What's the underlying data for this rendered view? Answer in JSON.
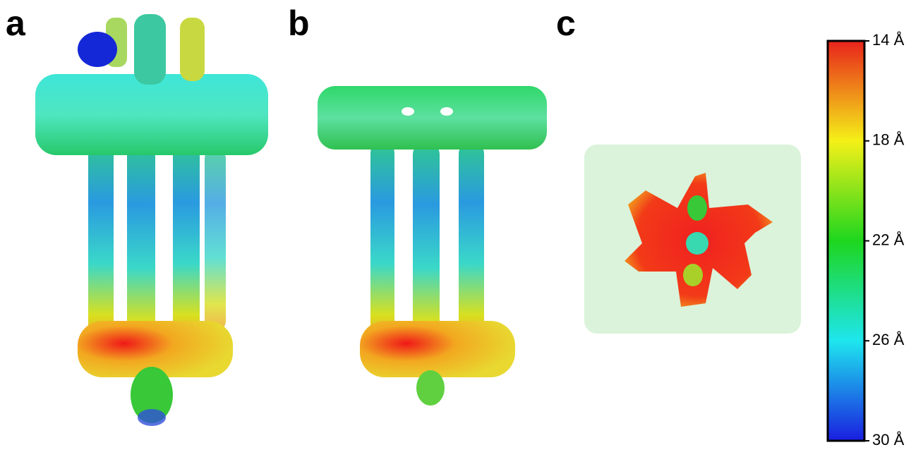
{
  "panels": [
    {
      "label": "a"
    },
    {
      "label": "b"
    },
    {
      "label": "c"
    }
  ],
  "colorbar": {
    "range": [
      14,
      30
    ],
    "ticks": [
      {
        "value": 14,
        "label": "14 Å"
      },
      {
        "value": 18,
        "label": "18 Å"
      },
      {
        "value": 22,
        "label": "22 Å"
      },
      {
        "value": 26,
        "label": "26 Å"
      },
      {
        "value": 30,
        "label": "30 Å"
      }
    ]
  }
}
